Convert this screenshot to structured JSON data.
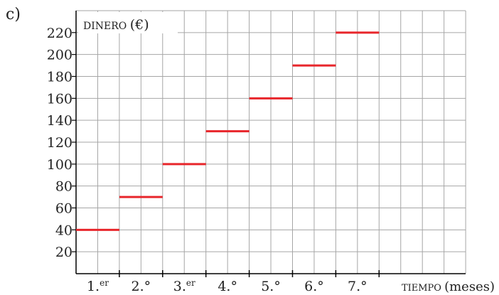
{
  "panel_label": "c)",
  "chart_data": {
    "type": "line",
    "style": "step",
    "ylabel_main": "DINERO",
    "ylabel_unit": "(€)",
    "xlabel_main": "TIEMPO",
    "xlabel_unit": "(meses)",
    "categories": [
      {
        "main": "1.",
        "sup": "er"
      },
      {
        "main": "2.°",
        "sup": ""
      },
      {
        "main": "3.",
        "sup": "er"
      },
      {
        "main": "4.°",
        "sup": ""
      },
      {
        "main": "5.°",
        "sup": ""
      },
      {
        "main": "6.°",
        "sup": ""
      },
      {
        "main": "7.°",
        "sup": ""
      }
    ],
    "values": [
      40,
      70,
      100,
      130,
      160,
      190,
      220
    ],
    "yticks": [
      20,
      40,
      60,
      80,
      100,
      120,
      140,
      160,
      180,
      200,
      220
    ],
    "ylim": [
      0,
      240
    ],
    "grid": true,
    "colors": {
      "series": "#e8262b",
      "grid": "#a6a6a6",
      "axis": "#000000"
    }
  }
}
